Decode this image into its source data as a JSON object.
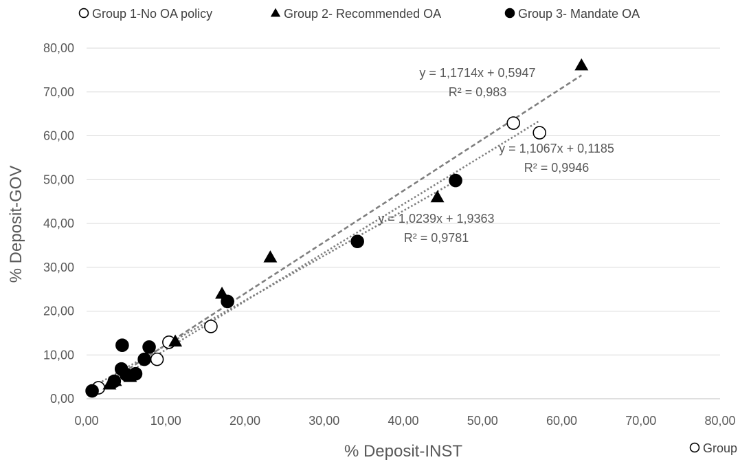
{
  "chart_data": {
    "type": "scatter",
    "xlabel": "% Deposit-INST",
    "ylabel": "% Deposit-GOV",
    "xlim": [
      0,
      80
    ],
    "ylim": [
      0,
      80
    ],
    "x_ticks": [
      "0,00",
      "10,00",
      "20,00",
      "30,00",
      "40,00",
      "50,00",
      "60,00",
      "70,00",
      "80,00"
    ],
    "y_ticks": [
      "0,00",
      "10,00",
      "20,00",
      "30,00",
      "40,00",
      "50,00",
      "60,00",
      "70,00",
      "80,00"
    ],
    "grid": "horizontal",
    "legend_position": "top",
    "legend_overflow_label": "Group",
    "series": [
      {
        "name": "Group 1-No OA policy",
        "marker": "open-circle",
        "points": [
          [
            1.5,
            2.5
          ],
          [
            8.9,
            9.0
          ],
          [
            10.4,
            12.9
          ],
          [
            15.7,
            16.5
          ],
          [
            53.9,
            62.9
          ],
          [
            57.2,
            60.7
          ]
        ],
        "trendline": {
          "style": "dotted",
          "x_range": [
            1.5,
            57.2
          ],
          "slope": 1.1067,
          "intercept": 0.1185
        },
        "equation": "y = 1,1067x + 0,1185",
        "r2": "R² = 0,9946"
      },
      {
        "name": "Group 2- Recommended OA",
        "marker": "triangle",
        "points": [
          [
            2.9,
            3.3
          ],
          [
            3.6,
            4.1
          ],
          [
            5.5,
            5.0
          ],
          [
            11.2,
            13.1
          ],
          [
            17.1,
            24.0
          ],
          [
            23.2,
            32.3
          ],
          [
            44.3,
            46.0
          ],
          [
            62.5,
            76.1
          ]
        ],
        "trendline": {
          "style": "dashed",
          "x_range": [
            2.9,
            62.5
          ],
          "slope": 1.1714,
          "intercept": 0.5947
        },
        "equation": "y = 1,1714x + 0,5947",
        "r2": "R² = 0,983"
      },
      {
        "name": "Group 3- Mandate OA",
        "marker": "filled-circle",
        "points": [
          [
            0.7,
            1.8
          ],
          [
            3.5,
            4.0
          ],
          [
            4.4,
            6.8
          ],
          [
            4.5,
            12.2
          ],
          [
            5.0,
            5.5
          ],
          [
            6.2,
            5.7
          ],
          [
            7.3,
            9.0
          ],
          [
            7.9,
            11.8
          ],
          [
            17.8,
            22.2
          ],
          [
            34.2,
            35.9
          ],
          [
            46.6,
            49.8
          ]
        ],
        "trendline": {
          "style": "dotted",
          "x_range": [
            0.7,
            46.6
          ],
          "slope": 1.0239,
          "intercept": 1.9363
        },
        "equation": "y = 1,0239x + 1,9363",
        "r2": "R² = 0,9781"
      }
    ]
  }
}
